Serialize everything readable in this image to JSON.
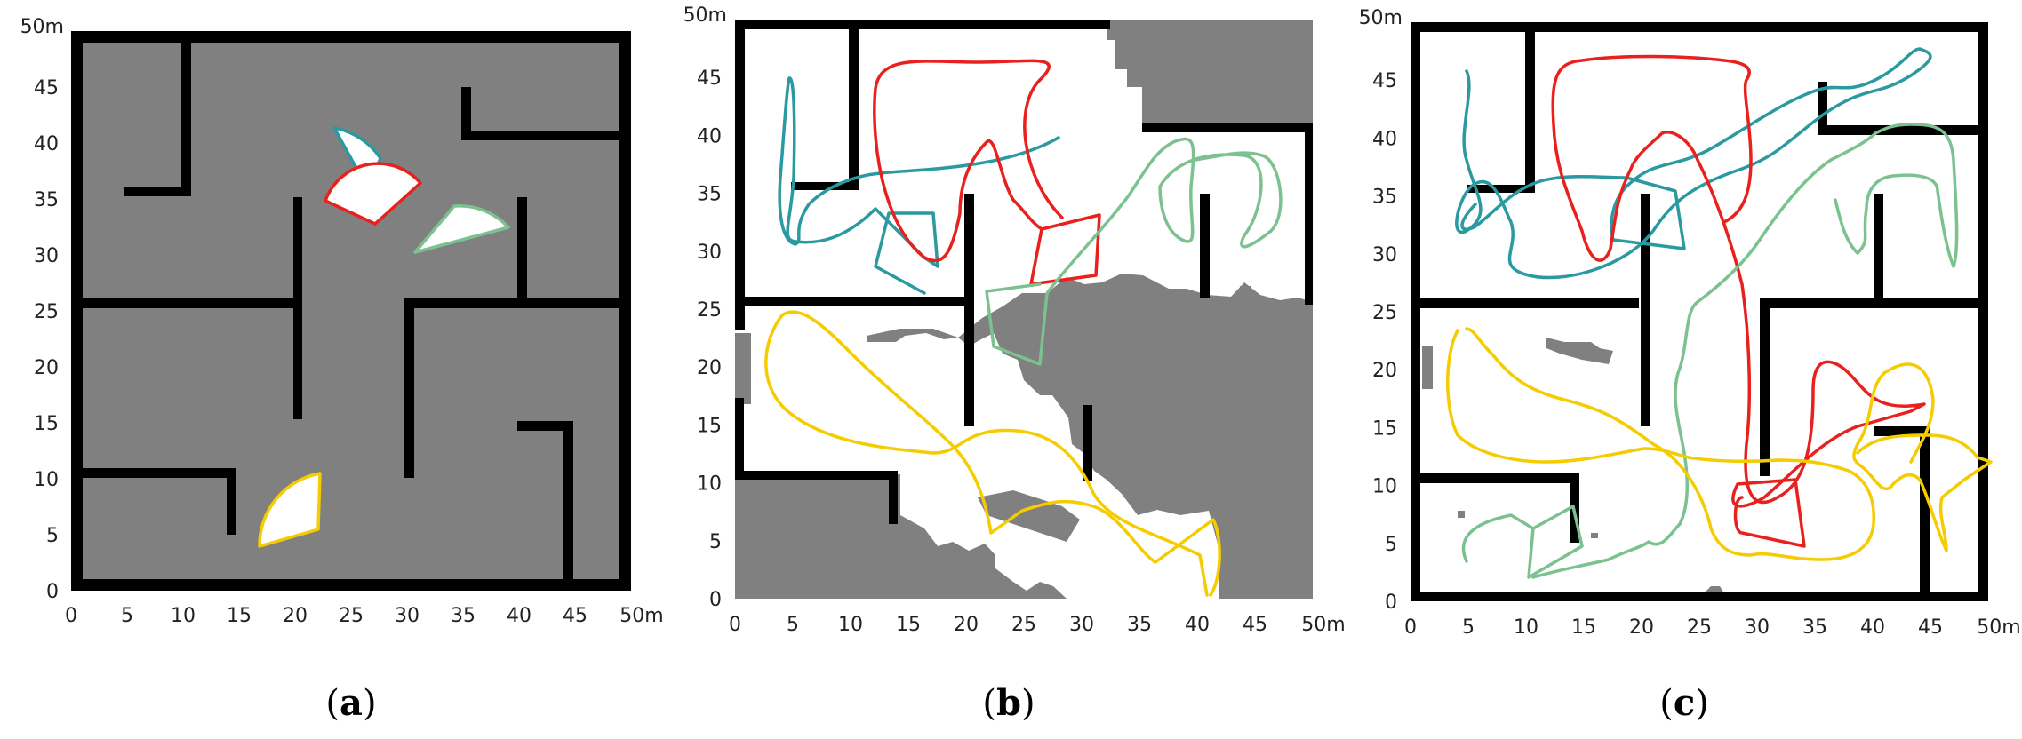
{
  "figure": {
    "axis_unit": "m",
    "ticks": [
      "0",
      "5",
      "10",
      "15",
      "20",
      "25",
      "30",
      "35",
      "40",
      "45"
    ],
    "end_label": "50m",
    "colors": {
      "occupied": "#808080",
      "free": "#ffffff",
      "wall": "#000000",
      "robot_teal": "#2a9aa0",
      "robot_red": "#e8201e",
      "robot_green": "#7cc190",
      "robot_yellow": "#f5cc00"
    },
    "panels": [
      {
        "id": "a",
        "caption_open": "(",
        "caption_letter": "a",
        "caption_close": ")"
      },
      {
        "id": "b",
        "caption_open": "(",
        "caption_letter": "b",
        "caption_close": ")"
      },
      {
        "id": "c",
        "caption_open": "(",
        "caption_letter": "c",
        "caption_close": ")"
      }
    ]
  }
}
